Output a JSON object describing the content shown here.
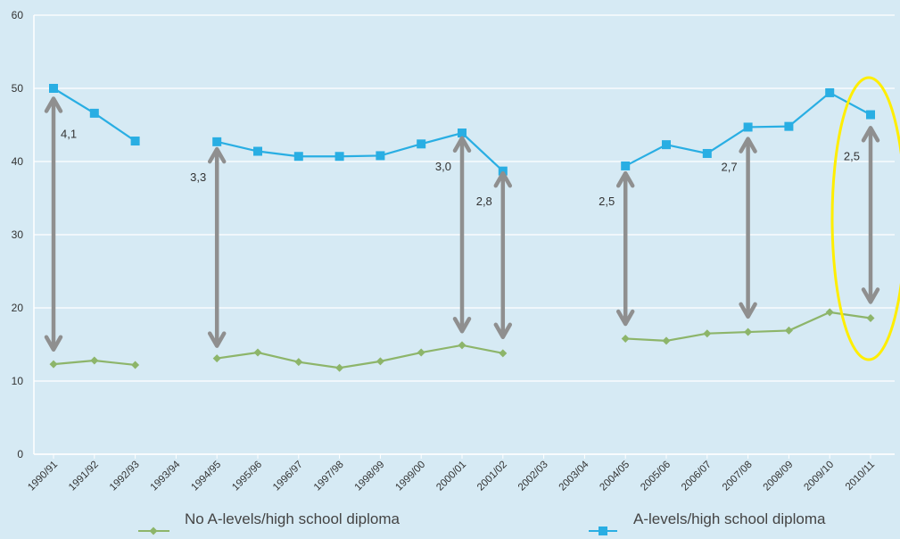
{
  "chart_data": {
    "type": "line",
    "ylim": [
      0,
      60
    ],
    "yticks": [
      0,
      10,
      20,
      30,
      40,
      50,
      60
    ],
    "grid": true,
    "legend_position": "bottom",
    "categories": [
      "1990/91",
      "1991/92",
      "1992/93",
      "1993/94",
      "1994/95",
      "1995/96",
      "1996/97",
      "1997/98",
      "1998/99",
      "1999/00",
      "2000/01",
      "2001/02",
      "2002/03",
      "2003/04",
      "2004/05",
      "2005/06",
      "2006/07",
      "2007/08",
      "2008/09",
      "2009/10",
      "2010/11"
    ],
    "series": [
      {
        "name": "No A-levels/high school diploma",
        "color": "#8db56a",
        "marker": "diamond",
        "values": [
          12.3,
          12.8,
          12.2,
          null,
          13.1,
          13.9,
          12.6,
          11.8,
          12.7,
          13.9,
          14.9,
          13.8,
          null,
          null,
          15.8,
          15.5,
          16.5,
          16.7,
          16.9,
          19.4,
          18.6
        ]
      },
      {
        "name": "A-levels/high school diploma",
        "color": "#29aee3",
        "marker": "square",
        "values": [
          50.0,
          46.6,
          42.8,
          null,
          42.7,
          41.4,
          40.7,
          40.7,
          40.8,
          42.4,
          43.9,
          38.7,
          null,
          null,
          39.4,
          42.3,
          41.1,
          44.7,
          44.8,
          49.4,
          46.4
        ]
      }
    ],
    "ratio_annotations": [
      {
        "category": "1990/91",
        "text": "4,1",
        "from": 48.6,
        "to": 14.3
      },
      {
        "category": "1994/95",
        "text": "3,3",
        "from": 41.7,
        "to": 14.8
      },
      {
        "category": "2000/01",
        "text": "3,0",
        "from": 43.2,
        "to": 16.8
      },
      {
        "category": "2001/02",
        "text": "2,8",
        "from": 38.4,
        "to": 16.0
      },
      {
        "category": "2004/05",
        "text": "2,5",
        "from": 38.4,
        "to": 17.8
      },
      {
        "category": "2007/08",
        "text": "2,7",
        "from": 43.1,
        "to": 18.8
      },
      {
        "category": "2010/11",
        "text": "2,5",
        "from": 44.6,
        "to": 20.8
      }
    ],
    "highlight": {
      "category": "2010/11",
      "shape": "ellipse",
      "color": "#ffee00"
    }
  },
  "legend": {
    "items": [
      "No A-levels/high school diploma",
      "A-levels/high school diploma"
    ]
  }
}
